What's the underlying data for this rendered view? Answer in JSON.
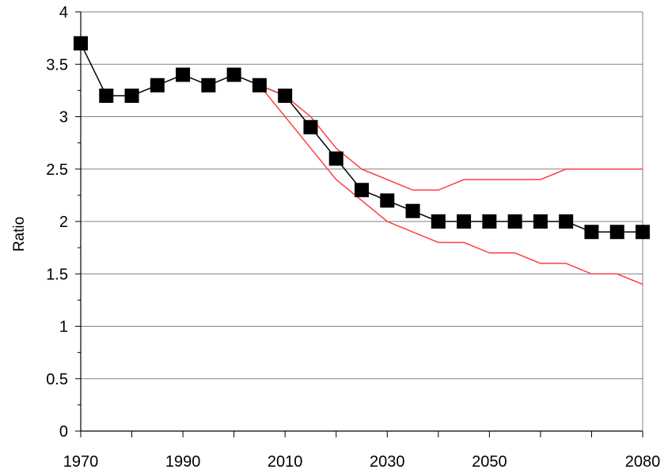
{
  "chart_data": {
    "type": "line",
    "title": "",
    "xlabel": "",
    "ylabel": "Ratio",
    "xlim": [
      1970,
      2080
    ],
    "ylim": [
      0,
      4
    ],
    "grid": "horizontal",
    "legend": "none",
    "x_tick_labels": [
      1970,
      1990,
      2010,
      2030,
      2050,
      2080
    ],
    "y_tick_labels": [
      "0",
      "0.5",
      "1",
      "1.5",
      "2",
      "2.5",
      "3",
      "3.5",
      "4"
    ],
    "x": [
      1970,
      1975,
      1980,
      1985,
      1990,
      1995,
      2000,
      2005,
      2010,
      2015,
      2020,
      2025,
      2030,
      2035,
      2040,
      2045,
      2050,
      2055,
      2060,
      2065,
      2070,
      2075,
      2080
    ],
    "series": [
      {
        "role": "central",
        "color": "#000000",
        "marker": "square",
        "values": [
          3.7,
          3.2,
          3.2,
          3.3,
          3.4,
          3.3,
          3.4,
          3.3,
          3.2,
          2.9,
          2.6,
          2.3,
          2.2,
          2.1,
          2.0,
          2.0,
          2.0,
          2.0,
          2.0,
          2.0,
          1.9,
          1.9,
          1.9
        ]
      },
      {
        "role": "upper",
        "color": "#ff4040",
        "x": [
          2005,
          2010,
          2015,
          2020,
          2025,
          2030,
          2035,
          2040,
          2045,
          2050,
          2055,
          2060,
          2065,
          2070,
          2075,
          2080
        ],
        "values": [
          3.3,
          3.2,
          3.0,
          2.7,
          2.5,
          2.4,
          2.3,
          2.3,
          2.4,
          2.4,
          2.4,
          2.4,
          2.5,
          2.5,
          2.5,
          2.5
        ]
      },
      {
        "role": "lower",
        "color": "#ff4040",
        "x": [
          2005,
          2010,
          2015,
          2020,
          2025,
          2030,
          2035,
          2040,
          2045,
          2050,
          2055,
          2060,
          2065,
          2070,
          2075,
          2080
        ],
        "values": [
          3.3,
          3.0,
          2.7,
          2.4,
          2.2,
          2.0,
          1.9,
          1.8,
          1.8,
          1.7,
          1.7,
          1.6,
          1.6,
          1.5,
          1.5,
          1.4
        ]
      }
    ]
  }
}
